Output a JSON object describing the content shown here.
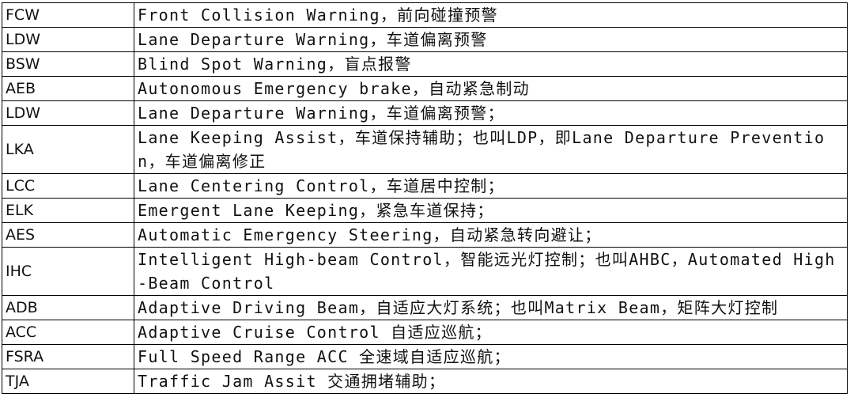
{
  "table": {
    "rows": [
      [
        "FCW",
        "Front Collision Warning，前向碰撞预警"
      ],
      [
        "LDW",
        "Lane Departure Warning，车道偏离预警"
      ],
      [
        "BSW",
        "Blind Spot Warning，盲点报警"
      ],
      [
        "AEB",
        "Autonomous Emergency brake，自动紧急制动"
      ],
      [
        "LDW",
        "Lane Departure Warning，车道偏离预警；"
      ],
      [
        "LKA",
        "Lane Keeping Assist，车道保持辅助；也叫LDP，即Lane Departure Prevention，车道偏离修正"
      ],
      [
        "LCC",
        "Lane Centering Control，车道居中控制；"
      ],
      [
        "ELK",
        "Emergent Lane Keeping，紧急车道保持；"
      ],
      [
        "AES",
        "Automatic Emergency Steering，自动紧急转向避让；"
      ],
      [
        "IHC",
        "Intelligent High-beam Control，智能远光灯控制；也叫AHBC，Automated High-Beam Control"
      ],
      [
        "ADB",
        "Adaptive Driving Beam，自适应大灯系统；也叫Matrix Beam，矩阵大灯控制"
      ],
      [
        "ACC",
        "Adaptive Cruise Control 自适应巡航；"
      ],
      [
        "FSRA",
        "Full Speed Range ACC 全速域自适应巡航；"
      ],
      [
        "TJA",
        "Traffic Jam Assit 交通拥堵辅助；"
      ]
    ]
  }
}
